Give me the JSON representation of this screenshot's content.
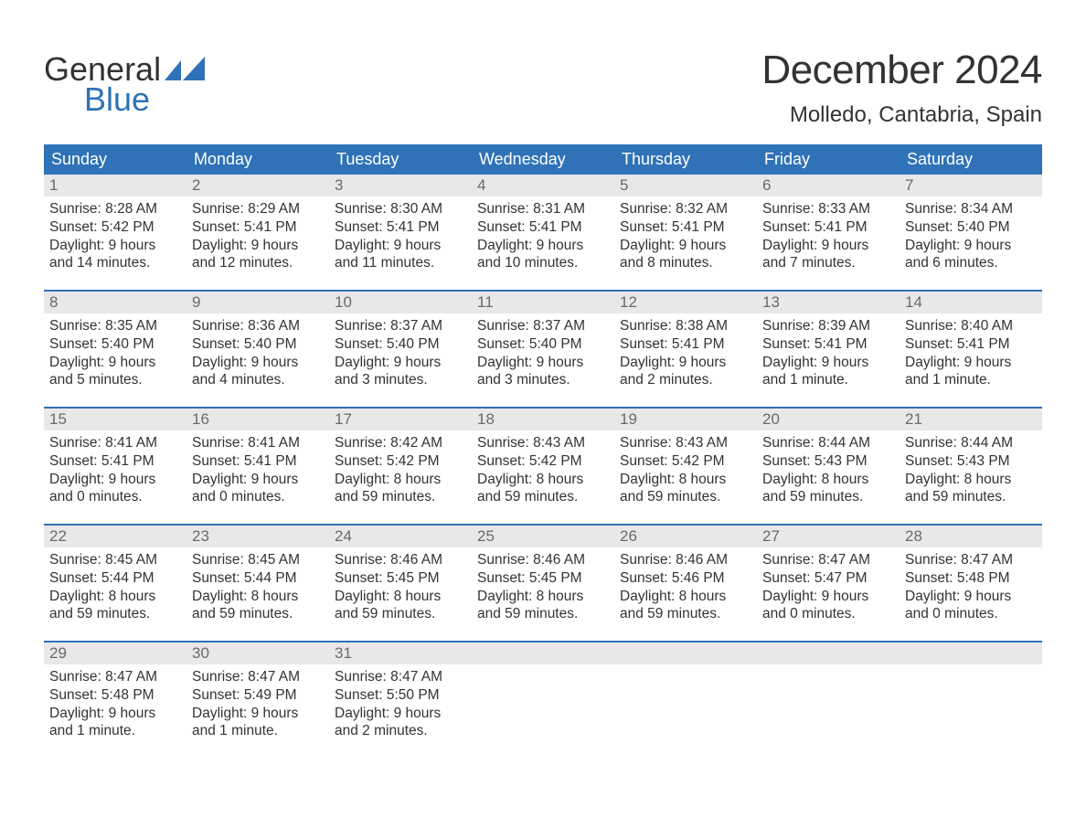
{
  "brand": {
    "word1": "General",
    "word2": "Blue"
  },
  "title": "December 2024",
  "location": "Molledo, Cantabria, Spain",
  "colors": {
    "primary": "#2f72b7",
    "header_bg": "#e8e8e8",
    "text": "#333333",
    "daynum": "#6a6a6a",
    "page_bg": "#ffffff"
  },
  "typography": {
    "month_title_fontsize": 44,
    "location_fontsize": 24,
    "day_header_fontsize": 18,
    "body_fontsize": 15.5,
    "logo_fontsize": 36
  },
  "day_headers": [
    "Sunday",
    "Monday",
    "Tuesday",
    "Wednesday",
    "Thursday",
    "Friday",
    "Saturday"
  ],
  "layout": {
    "columns": 7,
    "rows": 5,
    "week_border_color": "#2f72b7"
  },
  "weeks": [
    [
      {
        "n": "1",
        "sunrise": "8:28 AM",
        "sunset": "5:42 PM",
        "daylight": "9 hours and 14 minutes."
      },
      {
        "n": "2",
        "sunrise": "8:29 AM",
        "sunset": "5:41 PM",
        "daylight": "9 hours and 12 minutes."
      },
      {
        "n": "3",
        "sunrise": "8:30 AM",
        "sunset": "5:41 PM",
        "daylight": "9 hours and 11 minutes."
      },
      {
        "n": "4",
        "sunrise": "8:31 AM",
        "sunset": "5:41 PM",
        "daylight": "9 hours and 10 minutes."
      },
      {
        "n": "5",
        "sunrise": "8:32 AM",
        "sunset": "5:41 PM",
        "daylight": "9 hours and 8 minutes."
      },
      {
        "n": "6",
        "sunrise": "8:33 AM",
        "sunset": "5:41 PM",
        "daylight": "9 hours and 7 minutes."
      },
      {
        "n": "7",
        "sunrise": "8:34 AM",
        "sunset": "5:40 PM",
        "daylight": "9 hours and 6 minutes."
      }
    ],
    [
      {
        "n": "8",
        "sunrise": "8:35 AM",
        "sunset": "5:40 PM",
        "daylight": "9 hours and 5 minutes."
      },
      {
        "n": "9",
        "sunrise": "8:36 AM",
        "sunset": "5:40 PM",
        "daylight": "9 hours and 4 minutes."
      },
      {
        "n": "10",
        "sunrise": "8:37 AM",
        "sunset": "5:40 PM",
        "daylight": "9 hours and 3 minutes."
      },
      {
        "n": "11",
        "sunrise": "8:37 AM",
        "sunset": "5:40 PM",
        "daylight": "9 hours and 3 minutes."
      },
      {
        "n": "12",
        "sunrise": "8:38 AM",
        "sunset": "5:41 PM",
        "daylight": "9 hours and 2 minutes."
      },
      {
        "n": "13",
        "sunrise": "8:39 AM",
        "sunset": "5:41 PM",
        "daylight": "9 hours and 1 minute."
      },
      {
        "n": "14",
        "sunrise": "8:40 AM",
        "sunset": "5:41 PM",
        "daylight": "9 hours and 1 minute."
      }
    ],
    [
      {
        "n": "15",
        "sunrise": "8:41 AM",
        "sunset": "5:41 PM",
        "daylight": "9 hours and 0 minutes."
      },
      {
        "n": "16",
        "sunrise": "8:41 AM",
        "sunset": "5:41 PM",
        "daylight": "9 hours and 0 minutes."
      },
      {
        "n": "17",
        "sunrise": "8:42 AM",
        "sunset": "5:42 PM",
        "daylight": "8 hours and 59 minutes."
      },
      {
        "n": "18",
        "sunrise": "8:43 AM",
        "sunset": "5:42 PM",
        "daylight": "8 hours and 59 minutes."
      },
      {
        "n": "19",
        "sunrise": "8:43 AM",
        "sunset": "5:42 PM",
        "daylight": "8 hours and 59 minutes."
      },
      {
        "n": "20",
        "sunrise": "8:44 AM",
        "sunset": "5:43 PM",
        "daylight": "8 hours and 59 minutes."
      },
      {
        "n": "21",
        "sunrise": "8:44 AM",
        "sunset": "5:43 PM",
        "daylight": "8 hours and 59 minutes."
      }
    ],
    [
      {
        "n": "22",
        "sunrise": "8:45 AM",
        "sunset": "5:44 PM",
        "daylight": "8 hours and 59 minutes."
      },
      {
        "n": "23",
        "sunrise": "8:45 AM",
        "sunset": "5:44 PM",
        "daylight": "8 hours and 59 minutes."
      },
      {
        "n": "24",
        "sunrise": "8:46 AM",
        "sunset": "5:45 PM",
        "daylight": "8 hours and 59 minutes."
      },
      {
        "n": "25",
        "sunrise": "8:46 AM",
        "sunset": "5:45 PM",
        "daylight": "8 hours and 59 minutes."
      },
      {
        "n": "26",
        "sunrise": "8:46 AM",
        "sunset": "5:46 PM",
        "daylight": "8 hours and 59 minutes."
      },
      {
        "n": "27",
        "sunrise": "8:47 AM",
        "sunset": "5:47 PM",
        "daylight": "9 hours and 0 minutes."
      },
      {
        "n": "28",
        "sunrise": "8:47 AM",
        "sunset": "5:48 PM",
        "daylight": "9 hours and 0 minutes."
      }
    ],
    [
      {
        "n": "29",
        "sunrise": "8:47 AM",
        "sunset": "5:48 PM",
        "daylight": "9 hours and 1 minute."
      },
      {
        "n": "30",
        "sunrise": "8:47 AM",
        "sunset": "5:49 PM",
        "daylight": "9 hours and 1 minute."
      },
      {
        "n": "31",
        "sunrise": "8:47 AM",
        "sunset": "5:50 PM",
        "daylight": "9 hours and 2 minutes."
      },
      null,
      null,
      null,
      null
    ]
  ],
  "labels": {
    "sunrise": "Sunrise:",
    "sunset": "Sunset:",
    "daylight": "Daylight:"
  }
}
